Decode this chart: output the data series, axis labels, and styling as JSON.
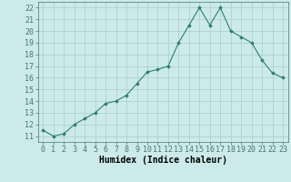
{
  "x": [
    0,
    1,
    2,
    3,
    4,
    5,
    6,
    7,
    8,
    9,
    10,
    11,
    12,
    13,
    14,
    15,
    16,
    17,
    18,
    19,
    20,
    21,
    22,
    23
  ],
  "y": [
    11.5,
    11.0,
    11.2,
    12.0,
    12.5,
    13.0,
    13.8,
    14.0,
    14.5,
    15.5,
    16.5,
    16.7,
    17.0,
    19.0,
    20.5,
    22.0,
    20.5,
    22.0,
    20.0,
    19.5,
    19.0,
    17.5,
    16.4,
    16.0
  ],
  "xlabel": "Humidex (Indice chaleur)",
  "ylabel": "",
  "ylim": [
    10.5,
    22.5
  ],
  "xlim": [
    -0.5,
    23.5
  ],
  "yticks": [
    11,
    12,
    13,
    14,
    15,
    16,
    17,
    18,
    19,
    20,
    21,
    22
  ],
  "xticks": [
    0,
    1,
    2,
    3,
    4,
    5,
    6,
    7,
    8,
    9,
    10,
    11,
    12,
    13,
    14,
    15,
    16,
    17,
    18,
    19,
    20,
    21,
    22,
    23
  ],
  "line_color": "#2e7d6e",
  "marker_color": "#2e7d6e",
  "bg_color": "#cceaea",
  "grid_color": "#aacccc",
  "axis_fontsize": 7,
  "tick_fontsize": 6
}
